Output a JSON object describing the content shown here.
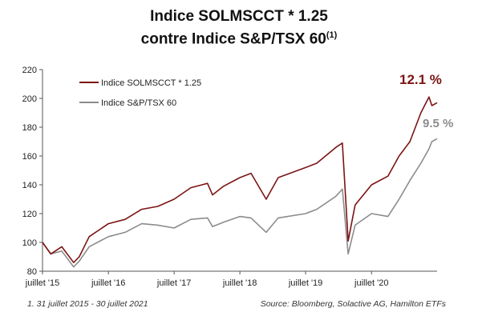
{
  "title_line1": "Indice SOLMSCCT * 1.25",
  "title_line2": "contre Indice S&P/TSX 60",
  "title_sup": "(1)",
  "footnote": "1. 31 juillet 2015 - 30 juillet 2021",
  "source": "Source: Bloomberg, Solactive AG, Hamilton ETFs",
  "colors": {
    "solmscct": "#7b1414",
    "tsx": "#8c8c8c"
  },
  "chart_data": {
    "type": "line",
    "title": "Indice SOLMSCCT * 1.25 contre Indice S&P/TSX 60",
    "xlabel": "",
    "ylabel": "",
    "ylim": [
      80,
      220
    ],
    "yticks": [
      80,
      100,
      120,
      140,
      160,
      180,
      200,
      220
    ],
    "xlim": [
      "2015-07-31",
      "2021-07-30"
    ],
    "xticks": [
      {
        "label": "juillet '15",
        "date": "2015-07-31"
      },
      {
        "label": "juillet '16",
        "date": "2016-07-31"
      },
      {
        "label": "juillet '17",
        "date": "2017-07-31"
      },
      {
        "label": "juillet '18",
        "date": "2018-07-31"
      },
      {
        "label": "juillet '19",
        "date": "2019-07-31"
      },
      {
        "label": "juillet '20",
        "date": "2020-07-31"
      }
    ],
    "grid": false,
    "legend_position": "top-left",
    "series": [
      {
        "name": "Indice SOLMSCCT * 1.25",
        "end_label": "12.1 %",
        "color": "#7b1414",
        "points": [
          [
            "2015-07-31",
            100
          ],
          [
            "2015-09-15",
            92
          ],
          [
            "2015-11-15",
            97
          ],
          [
            "2016-01-20",
            86
          ],
          [
            "2016-02-20",
            90
          ],
          [
            "2016-04-15",
            104
          ],
          [
            "2016-07-31",
            113
          ],
          [
            "2016-11-01",
            116
          ],
          [
            "2017-02-01",
            123
          ],
          [
            "2017-05-01",
            125
          ],
          [
            "2017-07-31",
            130
          ],
          [
            "2017-11-01",
            138
          ],
          [
            "2018-02-01",
            141
          ],
          [
            "2018-03-01",
            133
          ],
          [
            "2018-05-01",
            139
          ],
          [
            "2018-07-31",
            145
          ],
          [
            "2018-10-01",
            148
          ],
          [
            "2018-12-24",
            130
          ],
          [
            "2019-03-01",
            145
          ],
          [
            "2019-07-31",
            152
          ],
          [
            "2019-10-01",
            155
          ],
          [
            "2020-01-15",
            166
          ],
          [
            "2020-02-20",
            169
          ],
          [
            "2020-03-23",
            101
          ],
          [
            "2020-05-01",
            126
          ],
          [
            "2020-07-31",
            140
          ],
          [
            "2020-10-30",
            146
          ],
          [
            "2020-12-31",
            160
          ],
          [
            "2021-03-01",
            170
          ],
          [
            "2021-05-01",
            190
          ],
          [
            "2021-06-15",
            201
          ],
          [
            "2021-07-01",
            195
          ],
          [
            "2021-07-30",
            197
          ]
        ]
      },
      {
        "name": "Indice S&P/TSX 60",
        "end_label": "9.5 %",
        "color": "#8c8c8c",
        "points": [
          [
            "2015-07-31",
            100
          ],
          [
            "2015-09-15",
            92
          ],
          [
            "2015-11-15",
            94
          ],
          [
            "2016-01-20",
            83
          ],
          [
            "2016-02-20",
            87
          ],
          [
            "2016-04-15",
            97
          ],
          [
            "2016-07-31",
            104
          ],
          [
            "2016-11-01",
            107
          ],
          [
            "2017-02-01",
            113
          ],
          [
            "2017-05-01",
            112
          ],
          [
            "2017-07-31",
            110
          ],
          [
            "2017-11-01",
            116
          ],
          [
            "2018-02-01",
            117
          ],
          [
            "2018-03-01",
            111
          ],
          [
            "2018-05-01",
            114
          ],
          [
            "2018-07-31",
            118
          ],
          [
            "2018-10-01",
            117
          ],
          [
            "2018-12-24",
            107
          ],
          [
            "2019-03-01",
            117
          ],
          [
            "2019-07-31",
            120
          ],
          [
            "2019-10-01",
            123
          ],
          [
            "2020-01-15",
            132
          ],
          [
            "2020-02-20",
            137
          ],
          [
            "2020-03-23",
            92
          ],
          [
            "2020-05-01",
            112
          ],
          [
            "2020-07-31",
            120
          ],
          [
            "2020-10-30",
            118
          ],
          [
            "2020-12-31",
            130
          ],
          [
            "2021-03-01",
            143
          ],
          [
            "2021-05-01",
            155
          ],
          [
            "2021-06-15",
            165
          ],
          [
            "2021-07-01",
            170
          ],
          [
            "2021-07-30",
            172
          ]
        ]
      }
    ]
  }
}
